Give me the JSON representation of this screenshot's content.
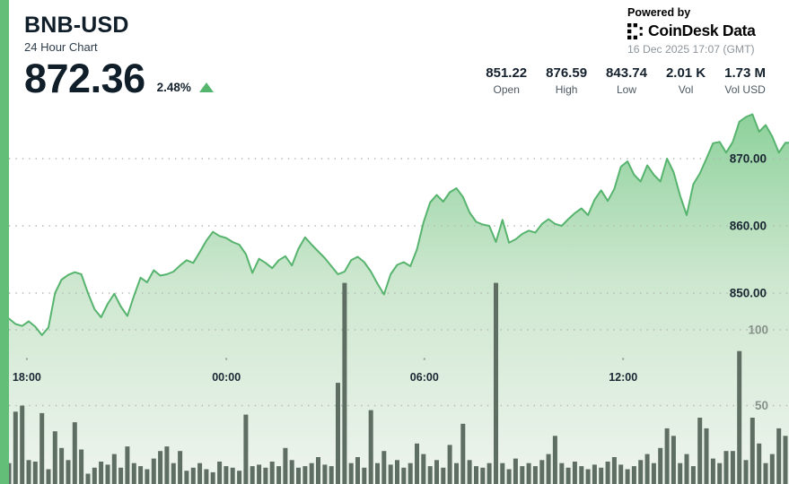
{
  "header": {
    "title": "BNB-USD",
    "subtitle": "24 Hour Chart",
    "price": "872.36",
    "change_percent": "2.48%",
    "change_direction": "up",
    "powered_by": "Powered by",
    "brand": "CoinDesk Data",
    "timestamp": "16 Dec 2025 17:07 (GMT)"
  },
  "stats": [
    {
      "value": "851.22",
      "label": "Open"
    },
    {
      "value": "876.59",
      "label": "High"
    },
    {
      "value": "843.74",
      "label": "Low"
    },
    {
      "value": "2.01 K",
      "label": "Vol"
    },
    {
      "value": "1.73 M",
      "label": "Vol USD"
    }
  ],
  "icons": {
    "trend": "up-triangle-icon",
    "brand": "coindesk-logo-icon"
  },
  "colors": {
    "accent_strip": "#63bf77",
    "line": "#57b46e",
    "area_top": "#8dd19b",
    "area_bottom": "#eef4ee",
    "volume_bar": "#5f6e62",
    "grid_dot": "#b3bab3",
    "price_label": "#1b2733",
    "volume_label": "#87918a",
    "up_triangle": "#53b56e",
    "title_text": "#101e2a",
    "muted_text": "#8e959b"
  },
  "chart_data": {
    "type": "area",
    "title": "BNB-USD 24 Hour Chart",
    "last": 872.36,
    "change_percent": 2.48,
    "open": 851.22,
    "high": 876.59,
    "low": 843.74,
    "volume": "2.01 K",
    "volume_usd": "1.73 M",
    "legend": "none",
    "grid": "dotted-horizontal",
    "price_axis_side": "right",
    "price_gridlines": [
      {
        "value": 870,
        "label": "870.00"
      },
      {
        "value": 860,
        "label": "860.00"
      },
      {
        "value": 850,
        "label": "850.00"
      }
    ],
    "volume_gridlines": [
      {
        "value": 100,
        "label": "100"
      },
      {
        "value": 50,
        "label": "50"
      }
    ],
    "x_ticks": [
      {
        "label": "18:00",
        "f": 0.023
      },
      {
        "label": "00:00",
        "f": 0.28
      },
      {
        "label": "06:00",
        "f": 0.535
      },
      {
        "label": "12:00",
        "f": 0.791
      }
    ],
    "prices": [
      846.2,
      845.4,
      845.1,
      845.8,
      845.0,
      843.74,
      844.9,
      850.0,
      852.0,
      852.7,
      853.1,
      852.8,
      850.0,
      847.6,
      846.4,
      848.4,
      849.9,
      848.0,
      846.6,
      849.6,
      852.3,
      851.6,
      853.4,
      852.6,
      852.8,
      853.2,
      854.1,
      854.9,
      854.5,
      856.1,
      857.8,
      859.1,
      858.5,
      858.2,
      857.6,
      857.2,
      855.8,
      853.0,
      855.1,
      854.5,
      853.7,
      854.9,
      855.5,
      854.1,
      856.6,
      858.3,
      857.2,
      856.2,
      855.2,
      854.0,
      852.8,
      853.2,
      854.9,
      855.4,
      854.6,
      853.2,
      851.4,
      849.8,
      852.8,
      854.2,
      854.6,
      854.0,
      856.5,
      860.5,
      863.5,
      864.6,
      863.6,
      865.0,
      865.6,
      864.3,
      862.0,
      860.6,
      860.2,
      860.0,
      857.6,
      860.9,
      857.5,
      858.0,
      858.8,
      859.3,
      859.0,
      860.3,
      861.0,
      860.3,
      860.0,
      861.0,
      861.9,
      862.6,
      861.6,
      863.9,
      865.3,
      863.7,
      865.5,
      868.8,
      869.6,
      867.6,
      866.6,
      869.0,
      867.6,
      866.6,
      870.0,
      868.0,
      864.5,
      861.6,
      866.2,
      867.8,
      870.0,
      872.3,
      872.5,
      870.9,
      872.5,
      875.5,
      876.2,
      876.59,
      874.0,
      875.0,
      873.3,
      870.9,
      872.36
    ],
    "volumes": [
      12,
      46,
      50,
      14,
      13,
      45,
      8,
      33,
      22,
      14,
      39,
      21,
      5,
      9,
      13,
      11,
      18,
      9,
      23,
      12,
      10,
      8,
      15,
      20,
      23,
      12,
      20,
      7,
      9,
      12,
      8,
      6,
      13,
      10,
      9,
      7,
      44,
      10,
      11,
      9,
      13,
      10,
      22,
      14,
      9,
      10,
      12,
      16,
      11,
      10,
      65,
      131,
      12,
      16,
      9,
      47,
      12,
      20,
      11,
      14,
      9,
      12,
      25,
      18,
      10,
      14,
      9,
      24,
      12,
      38,
      14,
      10,
      9,
      12,
      131,
      12,
      8,
      15,
      10,
      12,
      10,
      14,
      18,
      30,
      12,
      9,
      13,
      10,
      8,
      11,
      9,
      13,
      16,
      11,
      8,
      10,
      14,
      18,
      12,
      22,
      35,
      30,
      12,
      18,
      10,
      42,
      35,
      15,
      12,
      20,
      20,
      86,
      14,
      42,
      25,
      12,
      18,
      35,
      30
    ]
  }
}
